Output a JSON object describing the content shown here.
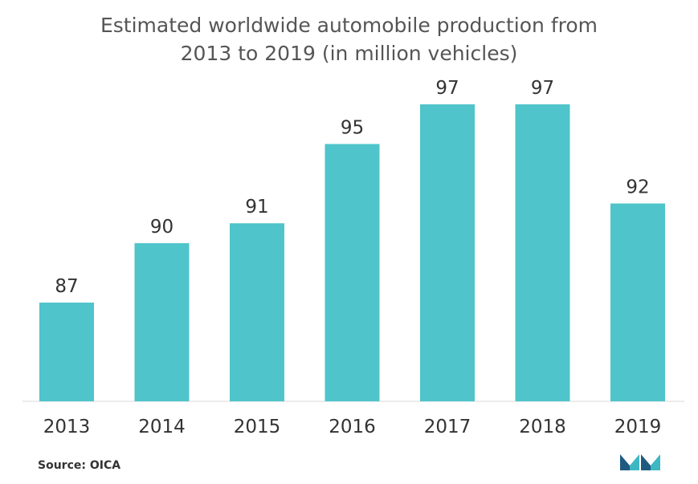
{
  "title_line1": "Estimated worldwide automobile production from",
  "title_line2": "2013 to 2019 (in million vehicles)",
  "source": "Source: OICA",
  "colors": {
    "bar": "#4fc4ca",
    "baseline": "#d9d9d9",
    "text": "#333333"
  },
  "chart_data": {
    "type": "bar",
    "title": "Estimated worldwide automobile production from 2013 to 2019 (in million vehicles)",
    "categories": [
      "2013",
      "2014",
      "2015",
      "2016",
      "2017",
      "2018",
      "2019"
    ],
    "values": [
      87,
      90,
      91,
      95,
      97,
      97,
      92
    ],
    "data_labels": [
      "87",
      "90",
      "91",
      "95",
      "97",
      "97",
      "92"
    ],
    "xlabel": "",
    "ylabel": "",
    "grid": false,
    "legend": "none"
  }
}
